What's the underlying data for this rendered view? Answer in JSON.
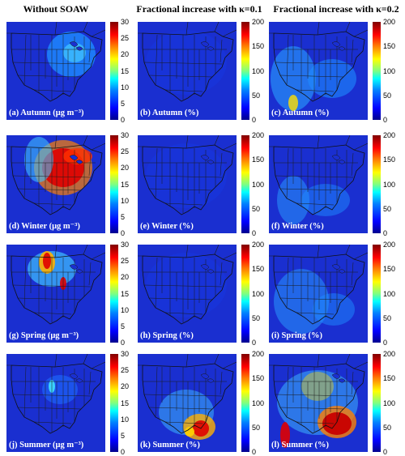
{
  "headers": [
    "Without SOAW",
    "Fractional increase with κ=0.1",
    "Fractional increase with κ=0.2"
  ],
  "scales": {
    "left": [
      0,
      5,
      10,
      15,
      20,
      25,
      30
    ],
    "right": [
      0,
      50,
      100,
      150,
      200
    ]
  },
  "panels": [
    {
      "label": "(a) Autumn (μg m⁻³)",
      "pattern": "autumn-base"
    },
    {
      "label": "(b) Autumn (%)",
      "pattern": "flat"
    },
    {
      "label": "(c) Autumn (%)",
      "pattern": "autumn-k2"
    },
    {
      "label": "(d) Winter (μg m⁻³)",
      "pattern": "winter-base"
    },
    {
      "label": "(e) Winter (%)",
      "pattern": "flat"
    },
    {
      "label": "(f) Winter (%)",
      "pattern": "winter-k2"
    },
    {
      "label": "(g) Spring (μg m⁻³)",
      "pattern": "spring-base"
    },
    {
      "label": "(h) Spring (%)",
      "pattern": "flat"
    },
    {
      "label": "(i) Spring (%)",
      "pattern": "spring-k2"
    },
    {
      "label": "(j) Summer (μg m⁻³)",
      "pattern": "summer-base"
    },
    {
      "label": "(k) Summer (%)",
      "pattern": "summer-k1"
    },
    {
      "label": "(l) Summer (%)",
      "pattern": "summer-k2"
    }
  ],
  "colors": {
    "background": "#1a2fd0",
    "map_lines": "#1a1a1a"
  }
}
